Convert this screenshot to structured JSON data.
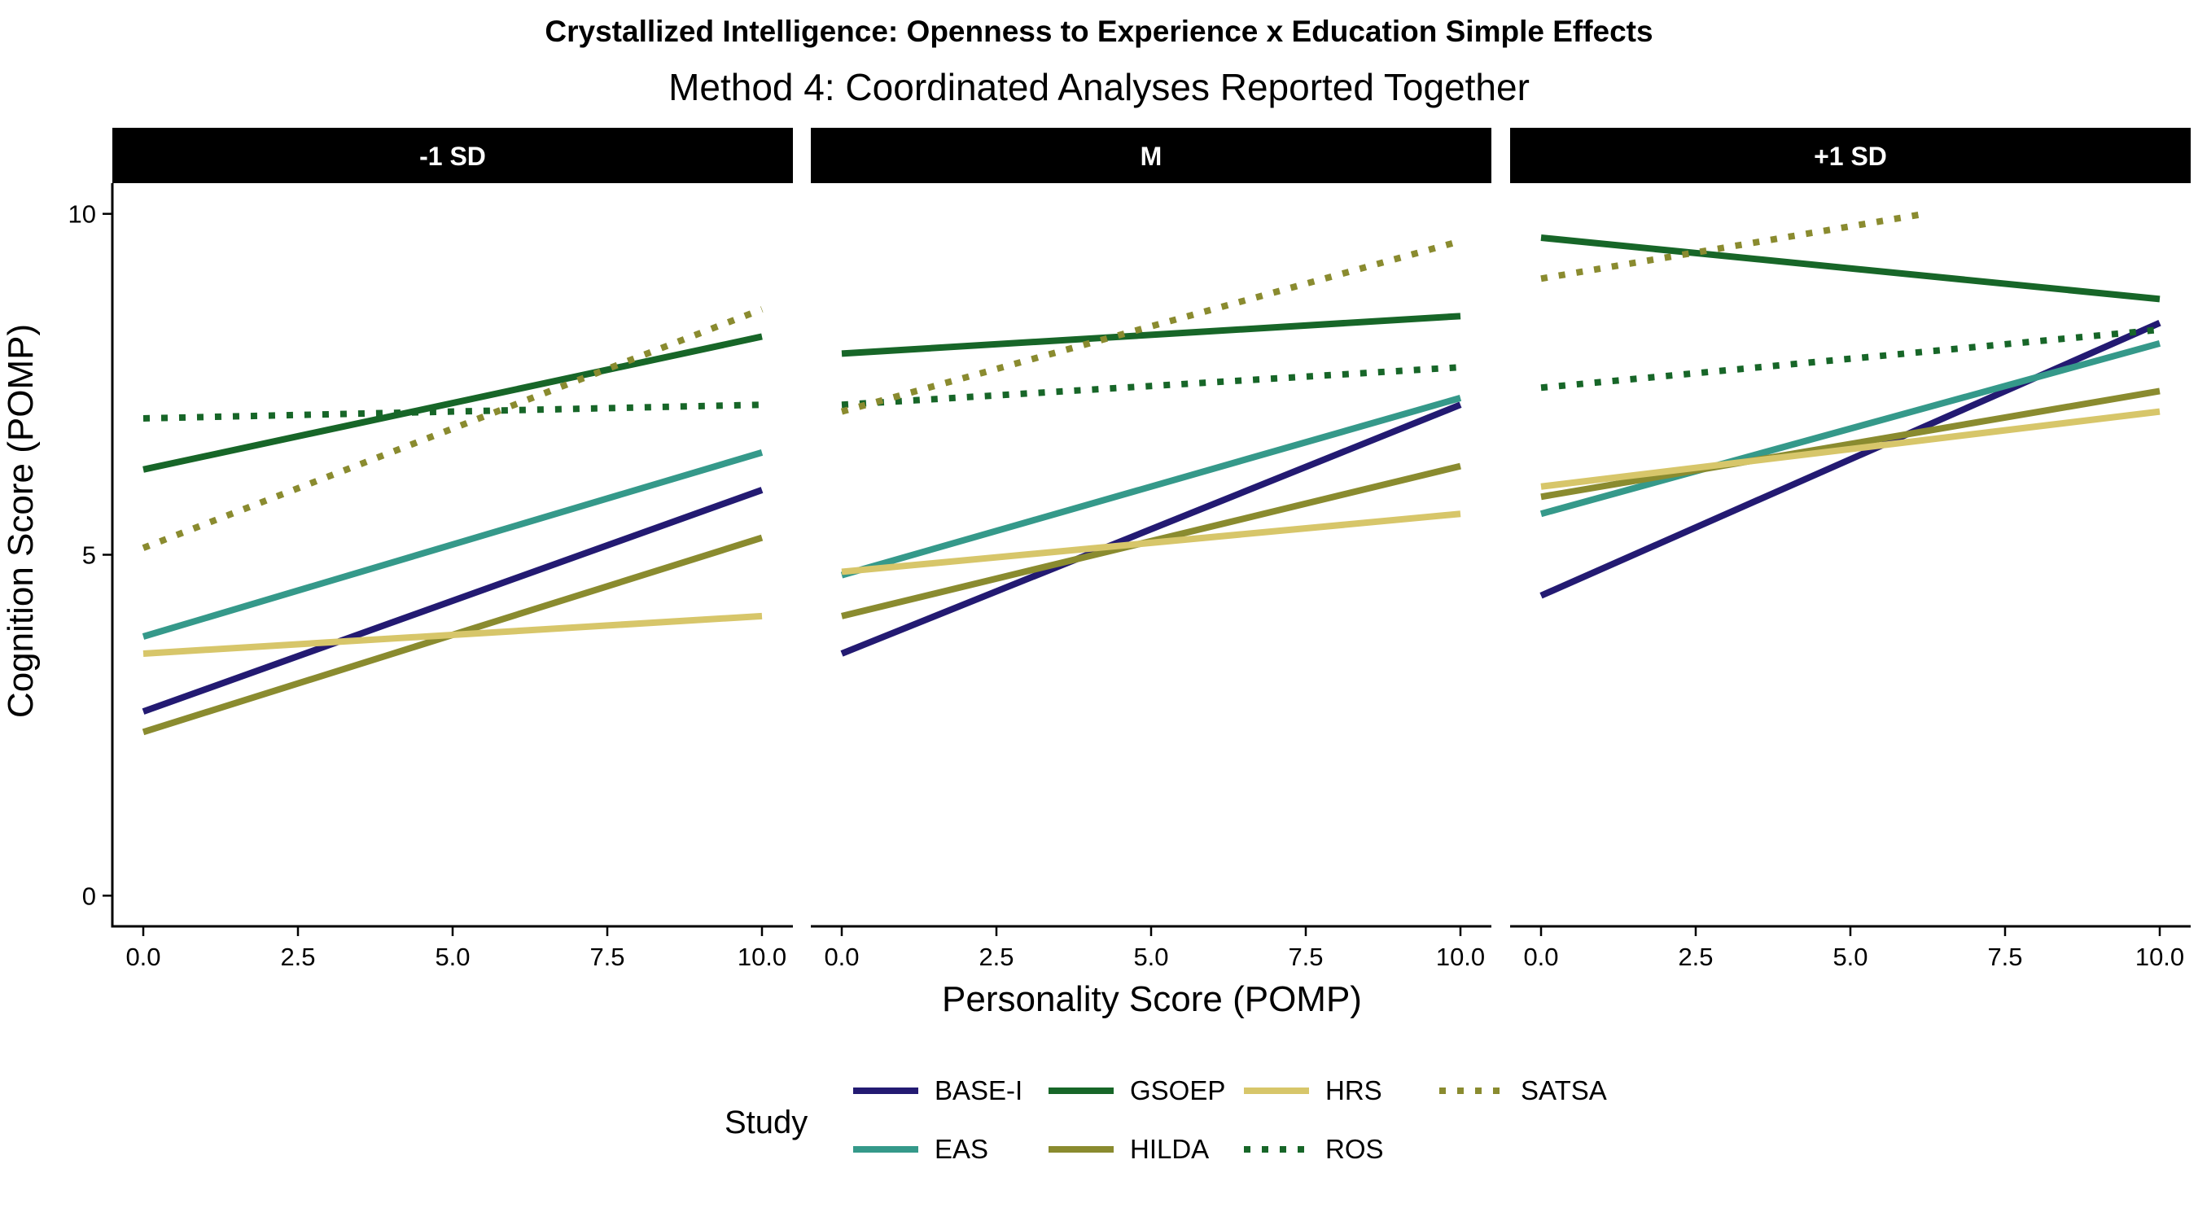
{
  "title": "Crystallized Intelligence: Openness to Experience x Education Simple Effects",
  "subtitle": "Method 4: Coordinated Analyses Reported Together",
  "chart_data": {
    "type": "line",
    "xlabel": "Personality Score (POMP)",
    "ylabel": "Cognition Score (POMP)",
    "xlim": [
      -0.5,
      10.5
    ],
    "ylim": [
      -0.45,
      10.45
    ],
    "x_ticks": [
      "0.0",
      "2.5",
      "5.0",
      "7.5",
      "10.0"
    ],
    "y_ticks": [
      "0",
      "5",
      "10"
    ],
    "grid": false,
    "legend_position": "bottom",
    "legend_title": "Study",
    "series_styles": [
      {
        "name": "BASE-I",
        "color": "#231a72",
        "dash": "solid"
      },
      {
        "name": "EAS",
        "color": "#35998a",
        "dash": "solid"
      },
      {
        "name": "GSOEP",
        "color": "#176628",
        "dash": "solid"
      },
      {
        "name": "HILDA",
        "color": "#8a8b2f",
        "dash": "solid"
      },
      {
        "name": "HRS",
        "color": "#d7c66a",
        "dash": "solid"
      },
      {
        "name": "ROS",
        "color": "#176628",
        "dash": "dotted"
      },
      {
        "name": "SATSA",
        "color": "#8a8b2f",
        "dash": "dotted"
      }
    ],
    "panels": [
      {
        "label": "-1 SD",
        "series": [
          {
            "name": "BASE-I",
            "x": [
              0,
              10
            ],
            "y": [
              2.7,
              5.95
            ]
          },
          {
            "name": "EAS",
            "x": [
              0,
              10
            ],
            "y": [
              3.8,
              6.5
            ]
          },
          {
            "name": "GSOEP",
            "x": [
              0,
              10
            ],
            "y": [
              6.25,
              8.2
            ]
          },
          {
            "name": "HILDA",
            "x": [
              0,
              10
            ],
            "y": [
              2.4,
              5.25
            ]
          },
          {
            "name": "HRS",
            "x": [
              0,
              10
            ],
            "y": [
              3.55,
              4.1
            ]
          },
          {
            "name": "ROS",
            "x": [
              0,
              10
            ],
            "y": [
              7.0,
              7.2
            ]
          },
          {
            "name": "SATSA",
            "x": [
              0,
              10
            ],
            "y": [
              5.1,
              8.6
            ]
          }
        ]
      },
      {
        "label": "M",
        "series": [
          {
            "name": "BASE-I",
            "x": [
              0,
              10
            ],
            "y": [
              3.55,
              7.2
            ]
          },
          {
            "name": "EAS",
            "x": [
              0,
              10
            ],
            "y": [
              4.7,
              7.3
            ]
          },
          {
            "name": "GSOEP",
            "x": [
              0,
              10
            ],
            "y": [
              7.95,
              8.5
            ]
          },
          {
            "name": "HILDA",
            "x": [
              0,
              10
            ],
            "y": [
              4.1,
              6.3
            ]
          },
          {
            "name": "HRS",
            "x": [
              0,
              10
            ],
            "y": [
              4.75,
              5.6
            ]
          },
          {
            "name": "ROS",
            "x": [
              0,
              10
            ],
            "y": [
              7.2,
              7.75
            ]
          },
          {
            "name": "SATSA",
            "x": [
              0,
              10
            ],
            "y": [
              7.1,
              9.6
            ]
          }
        ]
      },
      {
        "label": "+1 SD",
        "series": [
          {
            "name": "BASE-I",
            "x": [
              0,
              10
            ],
            "y": [
              4.4,
              8.4
            ]
          },
          {
            "name": "EAS",
            "x": [
              0,
              10
            ],
            "y": [
              5.6,
              8.1
            ]
          },
          {
            "name": "GSOEP",
            "x": [
              0,
              10
            ],
            "y": [
              9.65,
              8.75
            ]
          },
          {
            "name": "HILDA",
            "x": [
              0,
              10
            ],
            "y": [
              5.85,
              7.4
            ]
          },
          {
            "name": "HRS",
            "x": [
              0,
              10
            ],
            "y": [
              6.0,
              7.1
            ]
          },
          {
            "name": "ROS",
            "x": [
              0,
              10
            ],
            "y": [
              7.45,
              8.3
            ]
          },
          {
            "name": "SATSA",
            "x": [
              0,
              6.2
            ],
            "y": [
              9.05,
              10.0
            ]
          }
        ]
      }
    ]
  }
}
